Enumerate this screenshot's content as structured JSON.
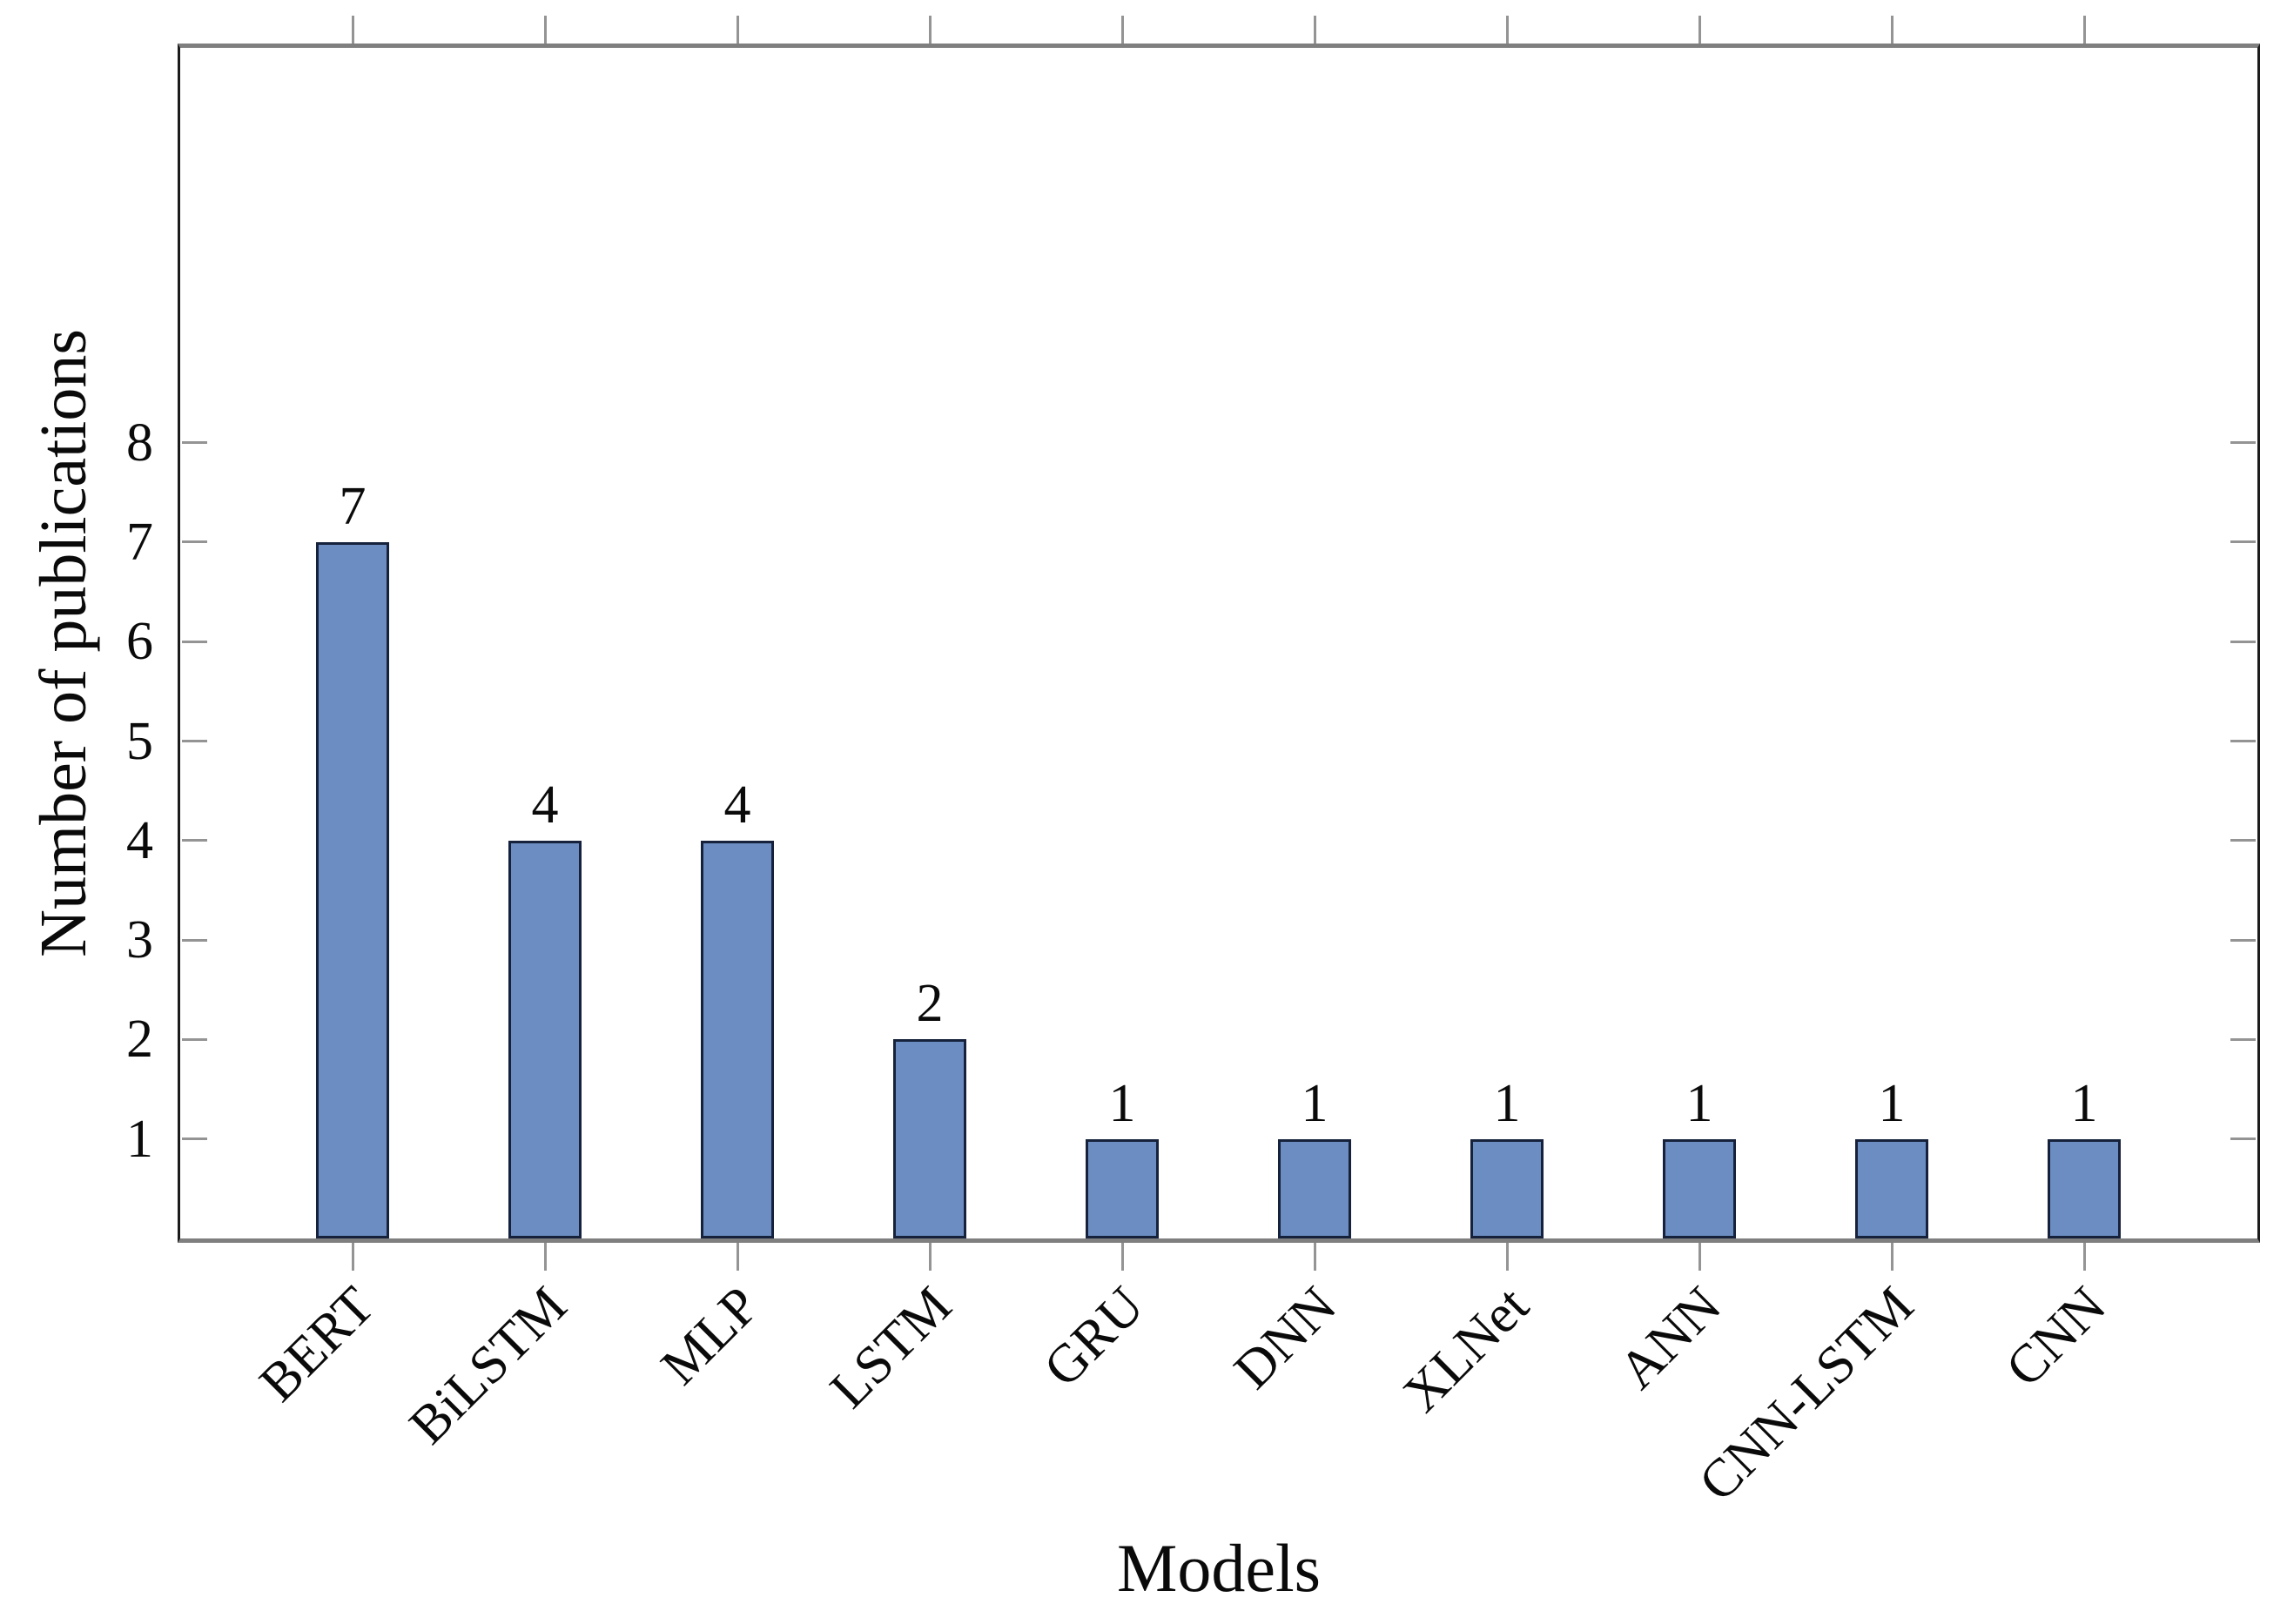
{
  "chart_data": {
    "type": "bar",
    "title": "",
    "xlabel": "Models",
    "ylabel": "Number of publications",
    "categories": [
      "BERT",
      "BiLSTM",
      "MLP",
      "LSTM",
      "GRU",
      "DNN",
      "XLNet",
      "ANN",
      "CNN-LSTM",
      "CNN"
    ],
    "values": [
      7,
      4,
      4,
      2,
      1,
      1,
      1,
      1,
      1,
      1
    ],
    "value_labels": [
      "7",
      "4",
      "4",
      "2",
      "1",
      "1",
      "1",
      "1",
      "1",
      "1"
    ],
    "yticks": [
      1,
      2,
      3,
      4,
      5,
      6,
      7,
      8
    ],
    "ytick_labels": [
      "1",
      "2",
      "3",
      "4",
      "5",
      "6",
      "7",
      "8"
    ],
    "ylim": [
      0,
      12
    ],
    "grid": false,
    "legend": null,
    "colors": {
      "bar_fill": "#6b8dc1",
      "bar_border": "#16223c",
      "axis_horizontal": "#7f7f7f",
      "axis_vertical": "#1b1b1b",
      "tick": "#949494",
      "text": "#0a0a0a",
      "background": "#ffffff"
    }
  }
}
